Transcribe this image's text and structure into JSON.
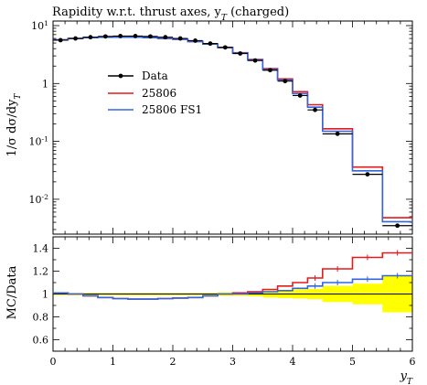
{
  "chart_data": [
    {
      "type": "line",
      "panel": "main",
      "title": "Rapidity w.r.t. thrust axes, y_T (charged)",
      "ylabel": "1/σ dσ/dy_T",
      "yscale": "log",
      "ylim": [
        0.0025,
        12
      ],
      "xlim": [
        0,
        6
      ],
      "x_ticks": [
        "0",
        "1",
        "2",
        "3",
        "4",
        "5",
        "6"
      ],
      "y_ticks": [
        {
          "value": 10,
          "label": "10^1"
        },
        {
          "value": 1,
          "label": "1"
        },
        {
          "value": 0.1,
          "label": "10^-1"
        },
        {
          "value": 0.01,
          "label": "10^-2"
        }
      ],
      "bin_edges": [
        0,
        0.25,
        0.5,
        0.75,
        1.0,
        1.25,
        1.5,
        1.75,
        2.0,
        2.25,
        2.5,
        2.75,
        3.0,
        3.25,
        3.5,
        3.75,
        4.0,
        4.25,
        4.5,
        5.0,
        5.5,
        6.0
      ],
      "legend_position": "upper-left",
      "series": [
        {
          "name": "Data",
          "style": "points",
          "color": "#000000",
          "values": [
            5.6,
            6.0,
            6.3,
            6.5,
            6.6,
            6.6,
            6.5,
            6.3,
            6.0,
            5.5,
            4.9,
            4.2,
            3.3,
            2.5,
            1.7,
            1.1,
            0.62,
            0.35,
            0.135,
            0.027,
            0.0035
          ]
        },
        {
          "name": "25806",
          "style": "step",
          "color": "#e41a1c",
          "values": [
            5.7,
            6.0,
            6.2,
            6.3,
            6.3,
            6.3,
            6.2,
            6.0,
            5.8,
            5.3,
            4.8,
            4.2,
            3.4,
            2.6,
            1.8,
            1.2,
            0.72,
            0.43,
            0.165,
            0.036,
            0.0048
          ]
        },
        {
          "name": "25806 FS1",
          "style": "step",
          "color": "#3366dd",
          "values": [
            5.7,
            6.0,
            6.2,
            6.3,
            6.3,
            6.3,
            6.2,
            6.0,
            5.8,
            5.3,
            4.8,
            4.2,
            3.35,
            2.55,
            1.75,
            1.15,
            0.67,
            0.39,
            0.15,
            0.031,
            0.0041
          ]
        }
      ]
    },
    {
      "type": "line",
      "panel": "ratio",
      "ylabel": "MC/Data",
      "xlabel": "y_T",
      "ylim": [
        0.5,
        1.5
      ],
      "xlim": [
        0,
        6
      ],
      "y_ticks": [
        "0.6",
        "0.8",
        "1",
        "1.2",
        "1.4"
      ],
      "x_ticks": [
        "0",
        "1",
        "2",
        "3",
        "4",
        "5",
        "6"
      ],
      "bin_edges": [
        0,
        0.25,
        0.5,
        0.75,
        1.0,
        1.25,
        1.5,
        1.75,
        2.0,
        2.25,
        2.5,
        2.75,
        3.0,
        3.25,
        3.5,
        3.75,
        4.0,
        4.25,
        4.5,
        5.0,
        5.5,
        6.0
      ],
      "uncertainty_band": {
        "color": "#ffff00",
        "low": [
          0.99,
          0.99,
          0.99,
          0.99,
          0.99,
          0.99,
          0.99,
          0.99,
          0.99,
          0.99,
          0.99,
          0.985,
          0.985,
          0.98,
          0.97,
          0.965,
          0.96,
          0.955,
          0.93,
          0.91,
          0.84
        ],
        "high": [
          1.01,
          1.01,
          1.01,
          1.01,
          1.01,
          1.01,
          1.01,
          1.01,
          1.01,
          1.01,
          1.01,
          1.015,
          1.015,
          1.02,
          1.03,
          1.035,
          1.04,
          1.045,
          1.07,
          1.09,
          1.16
        ]
      },
      "series": [
        {
          "name": "25806",
          "color": "#e41a1c",
          "values": [
            1.01,
            1.0,
            0.985,
            0.97,
            0.96,
            0.955,
            0.955,
            0.96,
            0.965,
            0.97,
            0.985,
            1.0,
            1.01,
            1.02,
            1.04,
            1.07,
            1.1,
            1.14,
            1.22,
            1.32,
            1.36
          ]
        },
        {
          "name": "25806 FS1",
          "color": "#3366dd",
          "values": [
            1.01,
            1.0,
            0.985,
            0.97,
            0.96,
            0.955,
            0.955,
            0.96,
            0.965,
            0.97,
            0.985,
            1.0,
            1.0,
            1.01,
            1.02,
            1.03,
            1.05,
            1.07,
            1.1,
            1.13,
            1.16
          ]
        }
      ]
    }
  ]
}
